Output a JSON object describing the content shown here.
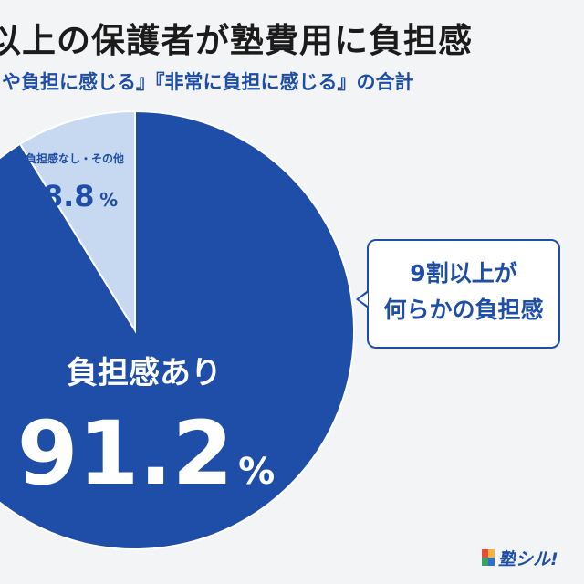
{
  "title": "以上の保護者が塾費用に負担感",
  "subtitle": "や負担に感じる』『非常に負担に感じる』の合計",
  "chart_data": {
    "type": "pie",
    "title": "以上の保護者が塾費用に負担感",
    "subtitle": "や負担に感じる』『非常に負担に感じる』の合計",
    "slices": [
      {
        "label": "負担感あり",
        "value": 91.2,
        "value_text": "91.2",
        "unit": "%",
        "color": "#1f4ea8"
      },
      {
        "label": "負担感なし・その他",
        "value": 8.8,
        "value_text": "8.8",
        "unit": "%",
        "color": "#c6d9f1"
      }
    ],
    "annotation": {
      "line1": "9割以上が",
      "line2": "何らかの負担感"
    }
  },
  "logo": {
    "text": "塾シル!",
    "colors": [
      "#e84a3c",
      "#f2b53a",
      "#3aa35b",
      "#2f6fd0"
    ]
  }
}
